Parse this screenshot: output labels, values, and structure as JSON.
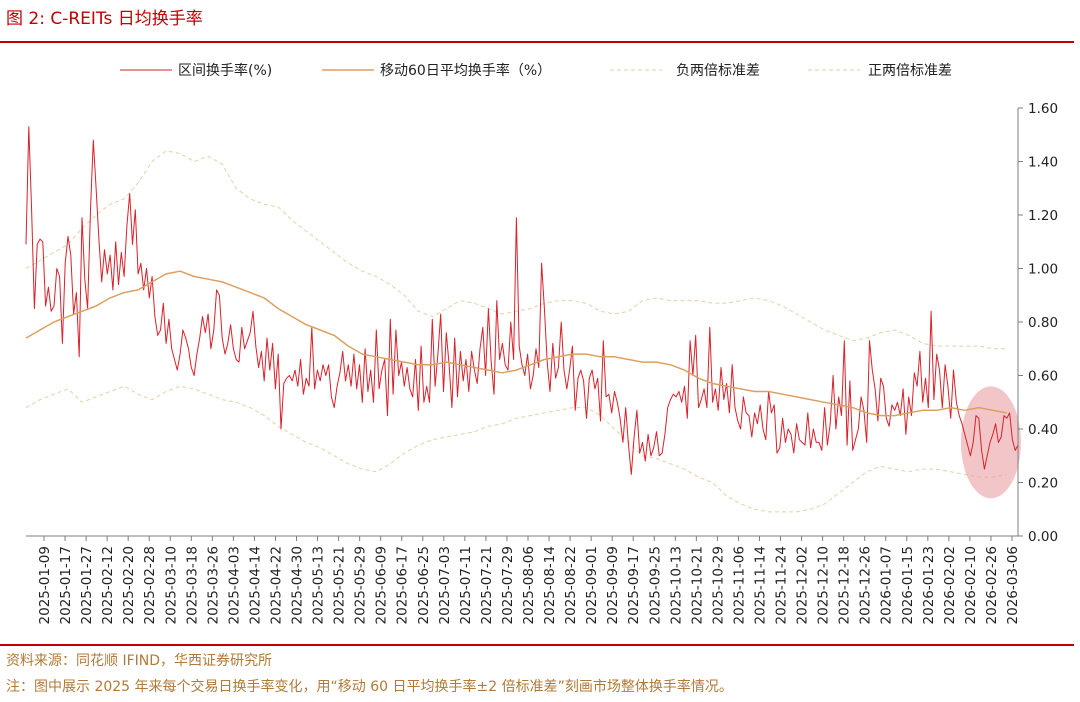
{
  "figure": {
    "title": "图 2:  C-REITs 日均换手率",
    "source": "资料来源：同花顺 IFIND，华西证券研究所",
    "footnote": "注：图中展示 2025 年来每个交易日换手率变化，用“移动 60 日平均换手率±2 倍标准差”刻画市场整体换手率情况。"
  },
  "colors": {
    "accent_red": "#c00000",
    "daily": "#d9212a",
    "ma60": "#dba060",
    "bands": "#e8cfa6",
    "highlight": "#e8979b",
    "axis": "#7f7f7f",
    "note_text": "#b07a3a"
  },
  "chart_data": {
    "type": "line",
    "title": "",
    "xlabel": "",
    "ylabel": "",
    "ylim": [
      0,
      1.6
    ],
    "yticks": [
      "0.00",
      "0.20",
      "0.40",
      "0.60",
      "0.80",
      "1.00",
      "1.20",
      "1.40",
      "1.60"
    ],
    "y_axis_side": "right",
    "grid": false,
    "legend_position": "top",
    "x_tick_labels": [
      "2025-01-09",
      "2025-01-17",
      "2025-01-27",
      "2025-02-12",
      "2025-02-20",
      "2025-02-28",
      "2025-03-10",
      "2025-03-18",
      "2025-03-26",
      "2025-04-03",
      "2025-04-14",
      "2025-04-22",
      "2025-04-30",
      "2025-05-13",
      "2025-05-21",
      "2025-05-29",
      "2025-06-09",
      "2025-06-17",
      "2025-06-25",
      "2025-07-03",
      "2025-07-11",
      "2025-07-21",
      "2025-07-29",
      "2025-08-06",
      "2025-08-14",
      "2025-08-22",
      "2025-09-01",
      "2025-09-09",
      "2025-09-17",
      "2025-09-25",
      "2025-10-13",
      "2025-10-21",
      "2025-10-29",
      "2025-11-06",
      "2025-11-14",
      "2025-11-24",
      "2025-12-02",
      "2025-12-10",
      "2025-12-18",
      "2025-12-26",
      "2026-01-07",
      "2026-01-15",
      "2026-01-23",
      "2026-02-02",
      "2026-02-10",
      "2026-02-26",
      "2026-03-06"
    ],
    "series": [
      {
        "name": "区间换手率(%)",
        "style": "solid",
        "color": "#d9212a",
        "values": [
          1.09,
          1.53,
          1.22,
          0.85,
          1.09,
          1.11,
          1.1,
          0.86,
          0.93,
          0.84,
          0.86,
          1.0,
          0.97,
          0.72,
          1.02,
          1.12,
          1.05,
          0.83,
          0.91,
          0.67,
          1.19,
          0.96,
          0.85,
          1.22,
          1.48,
          1.3,
          1.11,
          0.95,
          1.07,
          0.98,
          1.05,
          0.92,
          1.1,
          0.94,
          1.06,
          0.97,
          1.16,
          1.28,
          1.09,
          1.22,
          0.98,
          1.02,
          0.92,
          1.0,
          0.89,
          0.97,
          0.82,
          0.75,
          0.77,
          0.87,
          0.72,
          0.81,
          0.7,
          0.66,
          0.62,
          0.68,
          0.77,
          0.74,
          0.7,
          0.63,
          0.6,
          0.68,
          0.74,
          0.82,
          0.76,
          0.83,
          0.7,
          0.77,
          0.92,
          0.9,
          0.74,
          0.68,
          0.72,
          0.79,
          0.7,
          0.66,
          0.65,
          0.78,
          0.7,
          0.73,
          0.76,
          0.84,
          0.71,
          0.63,
          0.69,
          0.58,
          0.74,
          0.62,
          0.72,
          0.55,
          0.68,
          0.4,
          0.57,
          0.59,
          0.6,
          0.58,
          0.62,
          0.56,
          0.66,
          0.53,
          0.59,
          0.56,
          0.78,
          0.55,
          0.62,
          0.58,
          0.64,
          0.6,
          0.64,
          0.52,
          0.48,
          0.56,
          0.61,
          0.69,
          0.58,
          0.64,
          0.56,
          0.68,
          0.55,
          0.64,
          0.5,
          0.7,
          0.54,
          0.62,
          0.5,
          0.77,
          0.55,
          0.62,
          0.66,
          0.45,
          0.81,
          0.53,
          0.77,
          0.6,
          0.65,
          0.56,
          0.63,
          0.55,
          0.52,
          0.66,
          0.47,
          0.71,
          0.5,
          0.56,
          0.5,
          0.81,
          0.56,
          0.68,
          0.83,
          0.54,
          0.76,
          0.64,
          0.48,
          0.74,
          0.52,
          0.69,
          0.58,
          0.66,
          0.54,
          0.69,
          0.62,
          0.57,
          0.7,
          0.78,
          0.6,
          0.85,
          0.65,
          0.53,
          0.88,
          0.66,
          0.72,
          0.64,
          0.62,
          0.8,
          0.66,
          1.19,
          0.71,
          0.64,
          0.6,
          0.68,
          0.55,
          0.6,
          0.7,
          0.63,
          1.02,
          0.85,
          0.65,
          0.54,
          0.72,
          0.59,
          0.63,
          0.8,
          0.62,
          0.55,
          0.62,
          0.71,
          0.47,
          0.59,
          0.62,
          0.58,
          0.44,
          0.59,
          0.62,
          0.55,
          0.59,
          0.43,
          0.73,
          0.52,
          0.53,
          0.46,
          0.54,
          0.5,
          0.44,
          0.35,
          0.48,
          0.34,
          0.23,
          0.37,
          0.47,
          0.31,
          0.35,
          0.28,
          0.38,
          0.3,
          0.33,
          0.39,
          0.3,
          0.31,
          0.38,
          0.48,
          0.51,
          0.53,
          0.52,
          0.54,
          0.5,
          0.56,
          0.44,
          0.73,
          0.6,
          0.75,
          0.48,
          0.51,
          0.55,
          0.48,
          0.78,
          0.5,
          0.55,
          0.47,
          0.63,
          0.51,
          0.57,
          0.46,
          0.64,
          0.48,
          0.43,
          0.4,
          0.52,
          0.46,
          0.45,
          0.37,
          0.46,
          0.42,
          0.49,
          0.4,
          0.36,
          0.54,
          0.46,
          0.49,
          0.31,
          0.33,
          0.44,
          0.35,
          0.4,
          0.38,
          0.31,
          0.42,
          0.36,
          0.35,
          0.34,
          0.46,
          0.33,
          0.4,
          0.35,
          0.35,
          0.32,
          0.48,
          0.34,
          0.42,
          0.6,
          0.4,
          0.52,
          0.45,
          0.73,
          0.34,
          0.58,
          0.32,
          0.36,
          0.4,
          0.52,
          0.47,
          0.35,
          0.73,
          0.62,
          0.55,
          0.43,
          0.59,
          0.56,
          0.44,
          0.41,
          0.49,
          0.47,
          0.5,
          0.45,
          0.55,
          0.38,
          0.52,
          0.45,
          0.61,
          0.56,
          0.69,
          0.5,
          0.59,
          0.48,
          0.84,
          0.51,
          0.68,
          0.62,
          0.48,
          0.64,
          0.56,
          0.44,
          0.62,
          0.5,
          0.45,
          0.42,
          0.38,
          0.34,
          0.3,
          0.35,
          0.45,
          0.44,
          0.32,
          0.25,
          0.3,
          0.35,
          0.38,
          0.42,
          0.35,
          0.37,
          0.45,
          0.44,
          0.46,
          0.36,
          0.32,
          0.34
        ]
      },
      {
        "name": "移动60日平均换手率（%）",
        "style": "solid",
        "color": "#dba060",
        "x": [
          0,
          5,
          10,
          15,
          20,
          25,
          30,
          35,
          40,
          45,
          50,
          55,
          60,
          65,
          70,
          75,
          80,
          85,
          90,
          95,
          100,
          105,
          110,
          115,
          120,
          125,
          130,
          135,
          140,
          145,
          150,
          155,
          160,
          165,
          170,
          175,
          180,
          185,
          190,
          195,
          200,
          205,
          210,
          215,
          220,
          225,
          230,
          235,
          240,
          245,
          250,
          255,
          260,
          265,
          270,
          275,
          280,
          285,
          290,
          295,
          300,
          305,
          310,
          315,
          320,
          325,
          330,
          335,
          340,
          345,
          350
        ],
        "values": [
          0.74,
          0.77,
          0.8,
          0.82,
          0.84,
          0.86,
          0.89,
          0.91,
          0.92,
          0.95,
          0.98,
          0.99,
          0.97,
          0.96,
          0.95,
          0.93,
          0.91,
          0.89,
          0.85,
          0.82,
          0.79,
          0.77,
          0.75,
          0.71,
          0.68,
          0.67,
          0.66,
          0.65,
          0.64,
          0.64,
          0.65,
          0.64,
          0.63,
          0.62,
          0.61,
          0.62,
          0.64,
          0.66,
          0.67,
          0.68,
          0.68,
          0.67,
          0.67,
          0.66,
          0.65,
          0.65,
          0.64,
          0.62,
          0.59,
          0.57,
          0.56,
          0.55,
          0.54,
          0.54,
          0.53,
          0.52,
          0.51,
          0.5,
          0.49,
          0.48,
          0.46,
          0.45,
          0.45,
          0.46,
          0.47,
          0.47,
          0.48,
          0.47,
          0.48,
          0.47,
          0.46
        ]
      },
      {
        "name": "负两倍标准差",
        "style": "dashed",
        "color": "#e8cfa6",
        "x": [
          0,
          5,
          10,
          15,
          20,
          25,
          30,
          35,
          40,
          45,
          50,
          55,
          60,
          65,
          70,
          75,
          80,
          85,
          90,
          95,
          100,
          105,
          110,
          115,
          120,
          125,
          130,
          135,
          140,
          145,
          150,
          155,
          160,
          165,
          170,
          175,
          180,
          185,
          190,
          195,
          200,
          205,
          210,
          215,
          220,
          225,
          230,
          235,
          240,
          245,
          250,
          255,
          260,
          265,
          270,
          275,
          280,
          285,
          290,
          295,
          300,
          305,
          310,
          315,
          320,
          325,
          330,
          335,
          340,
          345,
          350
        ],
        "values": [
          0.48,
          0.51,
          0.53,
          0.55,
          0.5,
          0.52,
          0.54,
          0.56,
          0.53,
          0.51,
          0.54,
          0.56,
          0.55,
          0.53,
          0.51,
          0.5,
          0.48,
          0.45,
          0.41,
          0.38,
          0.35,
          0.33,
          0.3,
          0.27,
          0.25,
          0.24,
          0.27,
          0.31,
          0.34,
          0.36,
          0.37,
          0.38,
          0.39,
          0.41,
          0.42,
          0.44,
          0.45,
          0.46,
          0.47,
          0.48,
          0.48,
          0.45,
          0.4,
          0.35,
          0.3,
          0.29,
          0.27,
          0.25,
          0.22,
          0.2,
          0.15,
          0.12,
          0.1,
          0.09,
          0.09,
          0.09,
          0.1,
          0.12,
          0.16,
          0.2,
          0.24,
          0.26,
          0.25,
          0.24,
          0.25,
          0.25,
          0.24,
          0.23,
          0.22,
          0.22,
          0.23
        ]
      },
      {
        "name": "正两倍标准差",
        "style": "dashed",
        "color": "#e8cfa6",
        "x": [
          0,
          5,
          10,
          15,
          20,
          25,
          30,
          35,
          40,
          45,
          50,
          55,
          60,
          65,
          70,
          75,
          80,
          85,
          90,
          95,
          100,
          105,
          110,
          115,
          120,
          125,
          130,
          135,
          140,
          145,
          150,
          155,
          160,
          165,
          170,
          175,
          180,
          185,
          190,
          195,
          200,
          205,
          210,
          215,
          220,
          225,
          230,
          235,
          240,
          245,
          250,
          255,
          260,
          265,
          270,
          275,
          280,
          285,
          290,
          295,
          300,
          305,
          310,
          315,
          320,
          325,
          330,
          335,
          340,
          345,
          350
        ],
        "values": [
          1.0,
          1.03,
          1.06,
          1.09,
          1.15,
          1.2,
          1.24,
          1.26,
          1.32,
          1.4,
          1.44,
          1.43,
          1.4,
          1.42,
          1.39,
          1.3,
          1.26,
          1.24,
          1.23,
          1.18,
          1.14,
          1.1,
          1.06,
          1.02,
          0.99,
          0.97,
          0.94,
          0.9,
          0.84,
          0.82,
          0.85,
          0.88,
          0.87,
          0.85,
          0.83,
          0.84,
          0.85,
          0.87,
          0.88,
          0.88,
          0.87,
          0.84,
          0.83,
          0.84,
          0.88,
          0.89,
          0.88,
          0.88,
          0.88,
          0.87,
          0.87,
          0.88,
          0.89,
          0.88,
          0.86,
          0.83,
          0.8,
          0.77,
          0.75,
          0.73,
          0.74,
          0.76,
          0.77,
          0.75,
          0.72,
          0.71,
          0.71,
          0.71,
          0.71,
          0.7,
          0.7
        ]
      }
    ],
    "highlight": {
      "shape": "ellipse",
      "around_date": "2026-02-26",
      "y_center": 0.35
    }
  }
}
